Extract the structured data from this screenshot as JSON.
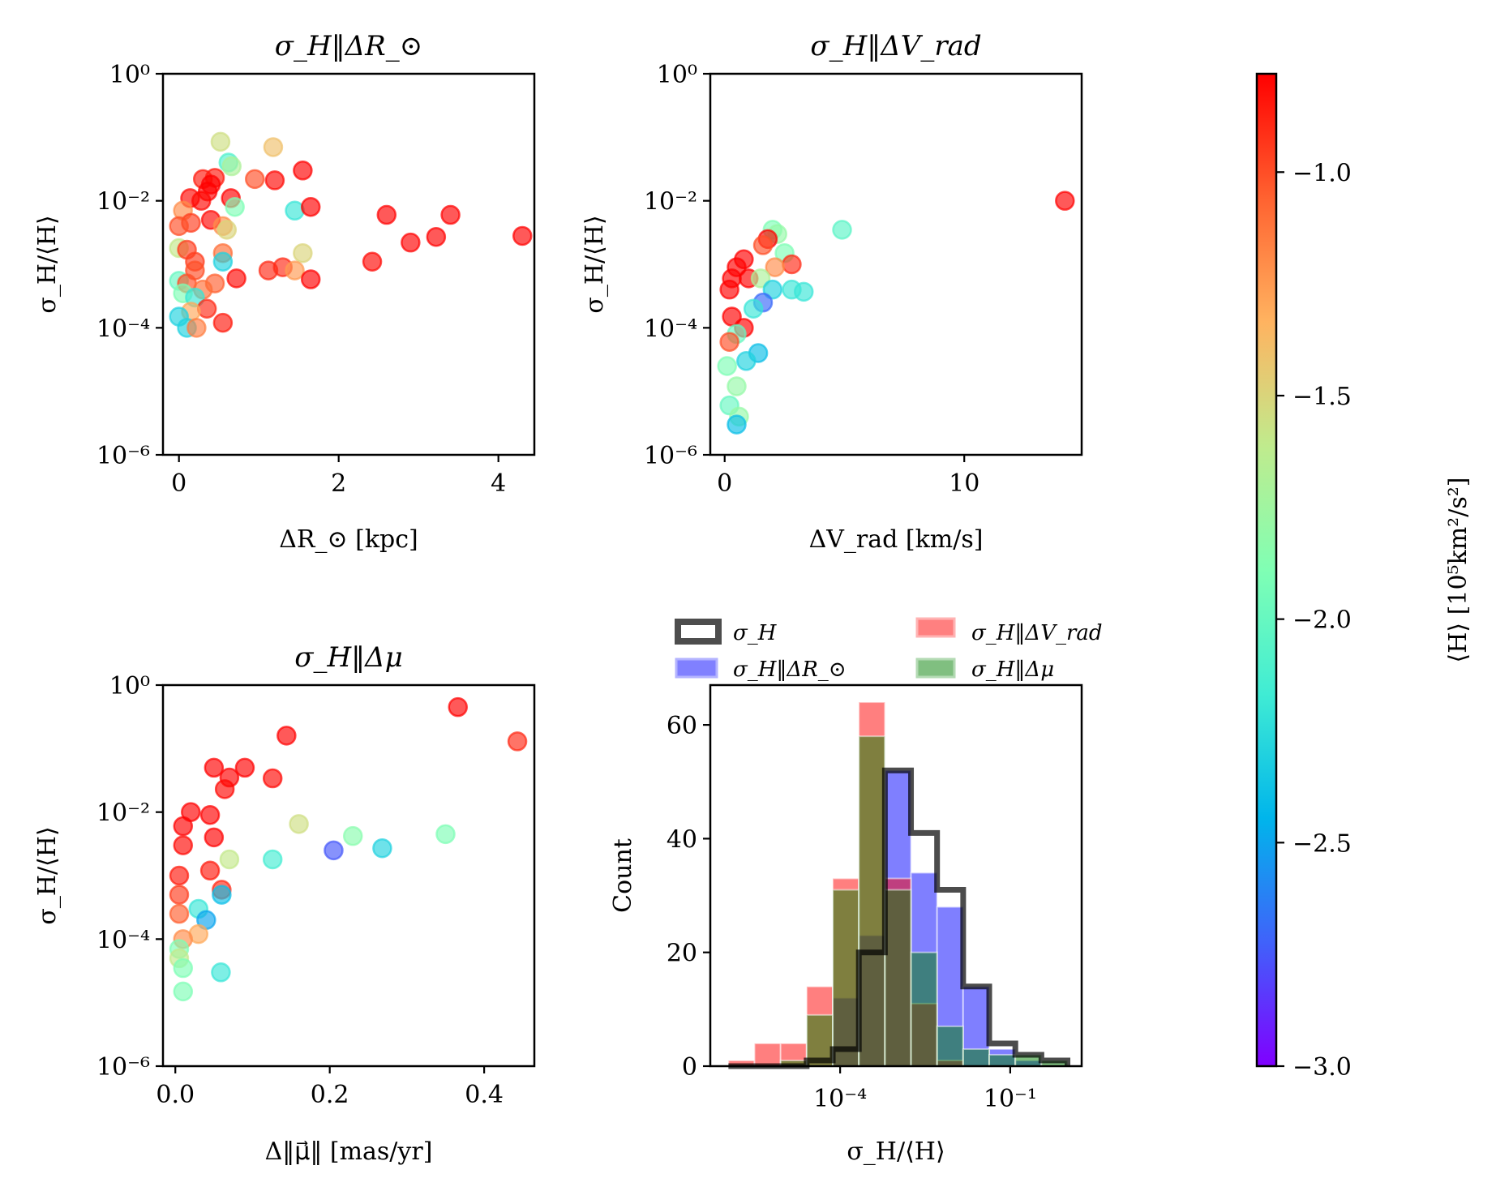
{
  "chart_data": [
    {
      "id": "scatter_dR",
      "type": "scatter",
      "title": "σ_H‖ΔR_⊙",
      "xlabel": "ΔR_⊙ [kpc]",
      "ylabel": "σ_H/⟨H⟩",
      "xlim": [
        -0.2,
        4.45
      ],
      "ylim_log10": [
        -6,
        0
      ],
      "yscale": "log",
      "xticks": [
        0,
        2,
        4
      ],
      "xtick_labels": [
        "0",
        "2",
        "4"
      ],
      "yticks_log10": [
        -6,
        -4,
        -2,
        0
      ],
      "ytick_labels": [
        "10⁻⁶",
        "10⁻⁴",
        "10⁻²",
        "10⁰"
      ],
      "points": [
        {
          "x": 0.52,
          "y": 0.085,
          "c": -1.55
        },
        {
          "x": 1.18,
          "y": 0.07,
          "c": -1.4
        },
        {
          "x": 0.62,
          "y": 0.04,
          "c": -2.1
        },
        {
          "x": 0.66,
          "y": 0.035,
          "c": -1.7
        },
        {
          "x": 1.55,
          "y": 0.03,
          "c": -0.7
        },
        {
          "x": 0.3,
          "y": 0.022,
          "c": -0.85
        },
        {
          "x": 0.45,
          "y": 0.023,
          "c": -0.85
        },
        {
          "x": 0.95,
          "y": 0.022,
          "c": -1.0
        },
        {
          "x": 1.2,
          "y": 0.021,
          "c": -0.8
        },
        {
          "x": 0.4,
          "y": 0.018,
          "c": -0.75
        },
        {
          "x": 0.36,
          "y": 0.014,
          "c": -0.7
        },
        {
          "x": 0.14,
          "y": 0.011,
          "c": -0.8
        },
        {
          "x": 0.28,
          "y": 0.01,
          "c": -0.8
        },
        {
          "x": 0.65,
          "y": 0.011,
          "c": -0.7
        },
        {
          "x": 0.7,
          "y": 0.008,
          "c": -1.9
        },
        {
          "x": 1.45,
          "y": 0.007,
          "c": -2.2
        },
        {
          "x": 1.65,
          "y": 0.008,
          "c": -0.75
        },
        {
          "x": 0.05,
          "y": 0.007,
          "c": -1.2
        },
        {
          "x": 0.4,
          "y": 0.005,
          "c": -0.8
        },
        {
          "x": 0.15,
          "y": 0.0045,
          "c": -0.95
        },
        {
          "x": 0.0,
          "y": 0.004,
          "c": -1.0
        },
        {
          "x": 0.55,
          "y": 0.004,
          "c": -1.2
        },
        {
          "x": 0.6,
          "y": 0.0035,
          "c": -1.5
        },
        {
          "x": 2.6,
          "y": 0.006,
          "c": -0.75
        },
        {
          "x": 3.4,
          "y": 0.006,
          "c": -0.75
        },
        {
          "x": 3.22,
          "y": 0.0027,
          "c": -0.75
        },
        {
          "x": 2.9,
          "y": 0.0022,
          "c": -0.7
        },
        {
          "x": 4.3,
          "y": 0.0028,
          "c": -0.7
        },
        {
          "x": 0.0,
          "y": 0.0018,
          "c": -1.6
        },
        {
          "x": 0.1,
          "y": 0.0017,
          "c": -0.95
        },
        {
          "x": 0.55,
          "y": 0.0015,
          "c": -1.1
        },
        {
          "x": 1.55,
          "y": 0.0015,
          "c": -1.5
        },
        {
          "x": 0.2,
          "y": 0.0011,
          "c": -0.95
        },
        {
          "x": 0.55,
          "y": 0.0011,
          "c": -2.3
        },
        {
          "x": 2.42,
          "y": 0.0011,
          "c": -0.8
        },
        {
          "x": 1.3,
          "y": 0.0009,
          "c": -0.9
        },
        {
          "x": 1.45,
          "y": 0.0008,
          "c": -1.25
        },
        {
          "x": 0.2,
          "y": 0.0008,
          "c": -1.0
        },
        {
          "x": 1.12,
          "y": 0.0008,
          "c": -0.9
        },
        {
          "x": 0.72,
          "y": 0.0006,
          "c": -0.8
        },
        {
          "x": 1.65,
          "y": 0.00058,
          "c": -0.72
        },
        {
          "x": 0.0,
          "y": 0.00055,
          "c": -2.0
        },
        {
          "x": 0.1,
          "y": 0.0005,
          "c": -1.0
        },
        {
          "x": 0.45,
          "y": 0.0005,
          "c": -1.05
        },
        {
          "x": 0.3,
          "y": 0.0004,
          "c": -1.1
        },
        {
          "x": 0.05,
          "y": 0.00035,
          "c": -1.9
        },
        {
          "x": 0.2,
          "y": 0.0003,
          "c": -2.2
        },
        {
          "x": 0.35,
          "y": 0.0002,
          "c": -0.9
        },
        {
          "x": 0.15,
          "y": 0.00018,
          "c": -1.3
        },
        {
          "x": 0.0,
          "y": 0.00015,
          "c": -2.3
        },
        {
          "x": 0.55,
          "y": 0.00012,
          "c": -0.85
        },
        {
          "x": 0.1,
          "y": 0.0001,
          "c": -2.3
        },
        {
          "x": 0.22,
          "y": 0.0001,
          "c": -1.15
        }
      ]
    },
    {
      "id": "scatter_dV",
      "type": "scatter",
      "title": "σ_H‖ΔV_rad",
      "xlabel": "ΔV_rad [km/s]",
      "ylabel": "σ_H/⟨H⟩",
      "xlim": [
        -0.6,
        14.9
      ],
      "ylim_log10": [
        -6,
        0
      ],
      "yscale": "log",
      "xticks": [
        0,
        10
      ],
      "xtick_labels": [
        "0",
        "10"
      ],
      "yticks_log10": [
        -6,
        -4,
        -2,
        0
      ],
      "ytick_labels": [
        "10⁻⁶",
        "10⁻⁴",
        "10⁻²",
        "10⁰"
      ],
      "points": [
        {
          "x": 14.2,
          "y": 0.01,
          "c": -0.75
        },
        {
          "x": 4.9,
          "y": 0.0035,
          "c": -2.05
        },
        {
          "x": 2.0,
          "y": 0.0035,
          "c": -1.9
        },
        {
          "x": 2.2,
          "y": 0.003,
          "c": -1.8
        },
        {
          "x": 1.8,
          "y": 0.0025,
          "c": -0.7
        },
        {
          "x": 1.6,
          "y": 0.002,
          "c": -1.0
        },
        {
          "x": 2.5,
          "y": 0.0015,
          "c": -1.9
        },
        {
          "x": 2.8,
          "y": 0.001,
          "c": -0.9
        },
        {
          "x": 2.1,
          "y": 0.0009,
          "c": -1.2
        },
        {
          "x": 0.8,
          "y": 0.0012,
          "c": -0.6
        },
        {
          "x": 0.5,
          "y": 0.0009,
          "c": -0.6
        },
        {
          "x": 0.3,
          "y": 0.0006,
          "c": -0.6
        },
        {
          "x": 0.2,
          "y": 0.0004,
          "c": -0.6
        },
        {
          "x": 1.0,
          "y": 0.0006,
          "c": -0.7
        },
        {
          "x": 1.5,
          "y": 0.0006,
          "c": -1.7
        },
        {
          "x": 2.0,
          "y": 0.0004,
          "c": -2.3
        },
        {
          "x": 2.8,
          "y": 0.0004,
          "c": -2.2
        },
        {
          "x": 3.3,
          "y": 0.00037,
          "c": -2.2
        },
        {
          "x": 1.6,
          "y": 0.00025,
          "c": -2.7
        },
        {
          "x": 1.2,
          "y": 0.0002,
          "c": -2.2
        },
        {
          "x": 0.3,
          "y": 0.00015,
          "c": -0.7
        },
        {
          "x": 0.8,
          "y": 0.0001,
          "c": -0.7
        },
        {
          "x": 0.5,
          "y": 8e-05,
          "c": -2.0
        },
        {
          "x": 0.2,
          "y": 6e-05,
          "c": -1.0
        },
        {
          "x": 1.4,
          "y": 4e-05,
          "c": -2.4
        },
        {
          "x": 0.9,
          "y": 3e-05,
          "c": -2.3
        },
        {
          "x": 0.1,
          "y": 2.5e-05,
          "c": -1.9
        },
        {
          "x": 0.5,
          "y": 1.2e-05,
          "c": -1.8
        },
        {
          "x": 0.2,
          "y": 6e-06,
          "c": -2.0
        },
        {
          "x": 0.6,
          "y": 4e-06,
          "c": -1.8
        },
        {
          "x": 0.5,
          "y": 3e-06,
          "c": -2.4
        }
      ]
    },
    {
      "id": "scatter_dmu",
      "type": "scatter",
      "title": "σ_H‖Δμ",
      "xlabel": "Δ‖μ⃗‖ [mas/yr]",
      "ylabel": "σ_H/⟨H⟩",
      "xlim": [
        -0.016,
        0.465
      ],
      "ylim_log10": [
        -6,
        0
      ],
      "yscale": "log",
      "xticks": [
        0.0,
        0.2,
        0.4
      ],
      "xtick_labels": [
        "0.0",
        "0.2",
        "0.4"
      ],
      "yticks_log10": [
        -6,
        -4,
        -2,
        0
      ],
      "ytick_labels": [
        "10⁻⁶",
        "10⁻⁴",
        "10⁻²",
        "10⁰"
      ],
      "points": [
        {
          "x": 0.366,
          "y": 0.45,
          "c": -0.7
        },
        {
          "x": 0.443,
          "y": 0.13,
          "c": -0.9
        },
        {
          "x": 0.144,
          "y": 0.16,
          "c": -0.7
        },
        {
          "x": 0.05,
          "y": 0.05,
          "c": -0.7
        },
        {
          "x": 0.09,
          "y": 0.05,
          "c": -0.75
        },
        {
          "x": 0.07,
          "y": 0.035,
          "c": -0.75
        },
        {
          "x": 0.064,
          "y": 0.023,
          "c": -0.8
        },
        {
          "x": 0.126,
          "y": 0.034,
          "c": -0.8
        },
        {
          "x": 0.02,
          "y": 0.01,
          "c": -0.7
        },
        {
          "x": 0.045,
          "y": 0.009,
          "c": -0.75
        },
        {
          "x": 0.01,
          "y": 0.006,
          "c": -0.75
        },
        {
          "x": 0.05,
          "y": 0.004,
          "c": -0.75
        },
        {
          "x": 0.16,
          "y": 0.0065,
          "c": -1.55
        },
        {
          "x": 0.23,
          "y": 0.0042,
          "c": -1.85
        },
        {
          "x": 0.35,
          "y": 0.0045,
          "c": -1.9
        },
        {
          "x": 0.268,
          "y": 0.0027,
          "c": -2.3
        },
        {
          "x": 0.205,
          "y": 0.0025,
          "c": -2.75
        },
        {
          "x": 0.126,
          "y": 0.0018,
          "c": -2.15
        },
        {
          "x": 0.07,
          "y": 0.0018,
          "c": -1.6
        },
        {
          "x": 0.01,
          "y": 0.003,
          "c": -0.8
        },
        {
          "x": 0.045,
          "y": 0.0012,
          "c": -0.85
        },
        {
          "x": 0.005,
          "y": 0.001,
          "c": -0.85
        },
        {
          "x": 0.06,
          "y": 0.0006,
          "c": -0.9
        },
        {
          "x": 0.06,
          "y": 0.0005,
          "c": -2.4
        },
        {
          "x": 0.005,
          "y": 0.0005,
          "c": -0.95
        },
        {
          "x": 0.03,
          "y": 0.0003,
          "c": -2.2
        },
        {
          "x": 0.005,
          "y": 0.00025,
          "c": -1.05
        },
        {
          "x": 0.04,
          "y": 0.0002,
          "c": -2.5
        },
        {
          "x": 0.03,
          "y": 0.00012,
          "c": -1.3
        },
        {
          "x": 0.01,
          "y": 0.0001,
          "c": -1.2
        },
        {
          "x": 0.005,
          "y": 7e-05,
          "c": -1.9
        },
        {
          "x": 0.005,
          "y": 5e-05,
          "c": -1.6
        },
        {
          "x": 0.01,
          "y": 3.5e-05,
          "c": -1.9
        },
        {
          "x": 0.059,
          "y": 3e-05,
          "c": -2.2
        },
        {
          "x": 0.01,
          "y": 1.5e-05,
          "c": -1.9
        }
      ]
    },
    {
      "id": "histogram",
      "type": "bar",
      "title": "",
      "xlabel": "σ_H/⟨H⟩",
      "ylabel": "Count",
      "xscale": "log",
      "xlim_log10": [
        -6.29,
        0.26
      ],
      "ylim": [
        0,
        67
      ],
      "xticks_log10": [
        -4,
        -1
      ],
      "xtick_labels": [
        "10⁻⁴",
        "10⁻¹"
      ],
      "yticks": [
        0,
        20,
        40,
        60
      ],
      "ytick_labels": [
        "0",
        "20",
        "40",
        "60"
      ],
      "bin_edges_log10": [
        -5.97,
        -5.51,
        -5.05,
        -4.59,
        -4.13,
        -3.67,
        -3.21,
        -2.75,
        -2.29,
        -1.83,
        -1.37,
        -0.91,
        -0.45,
        0.01
      ],
      "legend_position": "top, above axes",
      "series": [
        {
          "name": "σ_H",
          "style": "step-outline",
          "color": "#000000",
          "values": [
            0,
            0,
            0,
            1,
            3,
            20,
            52,
            41,
            31,
            14,
            4,
            2,
            1
          ]
        },
        {
          "name": "σ_H‖ΔR_⊙",
          "style": "filled",
          "color": "#0000ff",
          "values": [
            0,
            0,
            0,
            0,
            12,
            23,
            52,
            34,
            28,
            14,
            3,
            1,
            0
          ]
        },
        {
          "name": "σ_H‖ΔV_rad",
          "style": "filled",
          "color": "#ff0000",
          "values": [
            1,
            4,
            4,
            14,
            33,
            64,
            33,
            11,
            1,
            0,
            0,
            0,
            0
          ]
        },
        {
          "name": "σ_H‖Δμ",
          "style": "filled",
          "color": "#008000",
          "values": [
            0,
            0,
            1,
            9,
            31,
            58,
            31,
            20,
            7,
            3,
            2,
            2,
            1
          ]
        }
      ]
    }
  ],
  "colorbar": {
    "label": "⟨H⟩ [10⁵km²/s²]",
    "colormap": "rainbow",
    "range": [
      -3.0,
      -0.78
    ],
    "ticks": [
      -3.0,
      -2.5,
      -2.0,
      -1.5,
      -1.0
    ],
    "tick_labels": [
      "−3.0",
      "−2.5",
      "−2.0",
      "−1.5",
      "−1.0"
    ]
  },
  "legend": {
    "items": [
      {
        "label_main": "σ",
        "label_sub": "H",
        "label_rest": "",
        "kind": "step"
      },
      {
        "label_main": "σ",
        "label_sub": "H",
        "label_rest": "‖ΔV",
        "label_rest_sub": "rad",
        "kind": "red"
      },
      {
        "label_main": "σ",
        "label_sub": "H",
        "label_rest": "‖ΔR",
        "label_rest_sub": "⊙",
        "kind": "blue"
      },
      {
        "label_main": "σ",
        "label_sub": "H",
        "label_rest": "‖Δμ",
        "label_rest_sub": "",
        "kind": "green"
      }
    ]
  }
}
